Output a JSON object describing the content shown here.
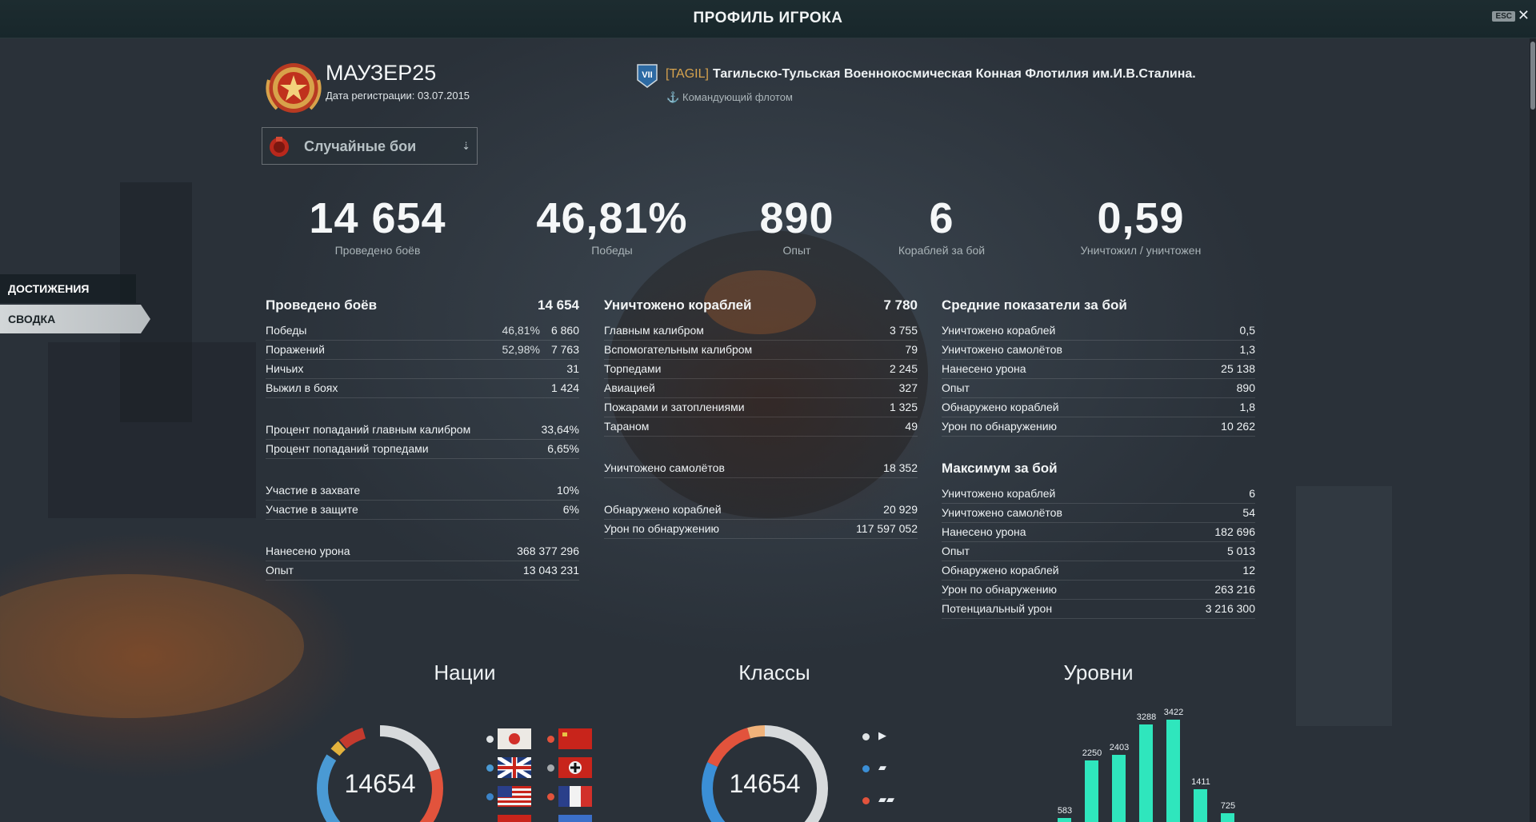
{
  "header": {
    "title": "ПРОФИЛЬ ИГРОКА",
    "esc_label": "ESC",
    "close_glyph": "✕"
  },
  "player": {
    "name": "МАУЗЕР25",
    "registration": "Дата регистрации: 03.07.2015"
  },
  "clan": {
    "rank_badge": "VII",
    "tag": "[TAGIL]",
    "name": "Тагильско-Тульская Военнокосмическая Конная Флотилия им.И.В.Сталина.",
    "role": "Командующий флотом",
    "role_icon": "anchor-icon"
  },
  "mode_select": {
    "selected": "Случайные бои",
    "icon": "random-battles-icon"
  },
  "big_stats": [
    {
      "value": "14 654",
      "label": "Проведено боёв"
    },
    {
      "value": "46,81%",
      "label": "Победы"
    },
    {
      "value": "890",
      "label": "Опыт"
    },
    {
      "value": "6",
      "label": "Кораблей за бой"
    },
    {
      "value": "0,59",
      "label": "Уничтожил / уничтожен"
    }
  ],
  "nav": {
    "achievements": "ДОСТИЖЕНИЯ",
    "summary": "СВОДКА"
  },
  "battles": {
    "title": "Проведено боёв",
    "total": "14 654",
    "rows": [
      {
        "label": "Победы",
        "pct": "46,81%",
        "value": "6 860"
      },
      {
        "label": "Поражений",
        "pct": "52,98%",
        "value": "7 763"
      },
      {
        "label": "Ничьих",
        "value": "31"
      },
      {
        "label": "Выжил в боях",
        "value": "1 424"
      }
    ],
    "accuracy": [
      {
        "label": "Процент попаданий главным калибром",
        "value": "33,64%"
      },
      {
        "label": "Процент попаданий торпедами",
        "value": "6,65%"
      }
    ],
    "base": [
      {
        "label": "Участие в захвате",
        "value": "10%"
      },
      {
        "label": "Участие в защите",
        "value": "6%"
      }
    ],
    "totals": [
      {
        "label": "Нанесено урона",
        "value": "368 377 296"
      },
      {
        "label": "Опыт",
        "value": "13 043 231"
      }
    ]
  },
  "destroyed": {
    "title": "Уничтожено кораблей",
    "total": "7 780",
    "rows": [
      {
        "label": "Главным калибром",
        "value": "3 755"
      },
      {
        "label": "Вспомогательным калибром",
        "value": "79"
      },
      {
        "label": "Торпедами",
        "value": "2 245"
      },
      {
        "label": "Авиацией",
        "value": "327"
      },
      {
        "label": "Пожарами и затоплениями",
        "value": "1 325"
      },
      {
        "label": "Тараном",
        "value": "49"
      }
    ],
    "planes": {
      "label": "Уничтожено самолётов",
      "value": "18 352"
    },
    "spotting": [
      {
        "label": "Обнаружено кораблей",
        "value": "20 929"
      },
      {
        "label": "Урон по обнаружению",
        "value": "117 597 052"
      }
    ]
  },
  "average": {
    "title": "Средние показатели за бой",
    "rows": [
      {
        "label": "Уничтожено кораблей",
        "value": "0,5"
      },
      {
        "label": "Уничтожено самолётов",
        "value": "1,3"
      },
      {
        "label": "Нанесено урона",
        "value": "25 138"
      },
      {
        "label": "Опыт",
        "value": "890"
      },
      {
        "label": "Обнаружено кораблей",
        "value": "1,8"
      },
      {
        "label": "Урон по обнаружению",
        "value": "10 262"
      }
    ]
  },
  "maximum": {
    "title": "Максимум за бой",
    "rows": [
      {
        "label": "Уничтожено кораблей",
        "value": "6"
      },
      {
        "label": "Уничтожено самолётов",
        "value": "54"
      },
      {
        "label": "Нанесено урона",
        "value": "182 696"
      },
      {
        "label": "Опыт",
        "value": "5 013"
      },
      {
        "label": "Обнаружено кораблей",
        "value": "12"
      },
      {
        "label": "Урон по обнаружению",
        "value": "263 216"
      },
      {
        "label": "Потенциальный урон",
        "value": "3 216 300"
      }
    ]
  },
  "sections": {
    "nations": "Нации",
    "classes": "Классы",
    "tiers": "Уровни"
  },
  "nations_donut": {
    "center": "14654",
    "flags": [
      {
        "name": "japan-flag-icon",
        "color": "#dfe3e5"
      },
      {
        "name": "ussr-flag-icon",
        "color": "#e2533c"
      },
      {
        "name": "uk-flag-icon",
        "color": "#4a9ad4"
      },
      {
        "name": "germany-flag-icon",
        "color": "#a6aaad"
      },
      {
        "name": "usa-flag-icon",
        "color": "#3b83c8"
      },
      {
        "name": "france-flag-icon",
        "color": "#e2533c"
      }
    ]
  },
  "classes_donut": {
    "center": "14654",
    "items": [
      {
        "name": "destroyer-class-icon",
        "color": "#dfe3e5",
        "glyph": "▶"
      },
      {
        "name": "cruiser-class-icon",
        "color": "#3b8fd6",
        "glyph": "▰"
      },
      {
        "name": "battleship-class-icon",
        "color": "#e2533c",
        "glyph": "▰▰"
      }
    ]
  },
  "chart_data": {
    "type": "bar",
    "title": "Уровни",
    "values": [
      583,
      2250,
      2403,
      3288,
      3422,
      1411,
      725
    ],
    "color": "#2fe6bd"
  }
}
